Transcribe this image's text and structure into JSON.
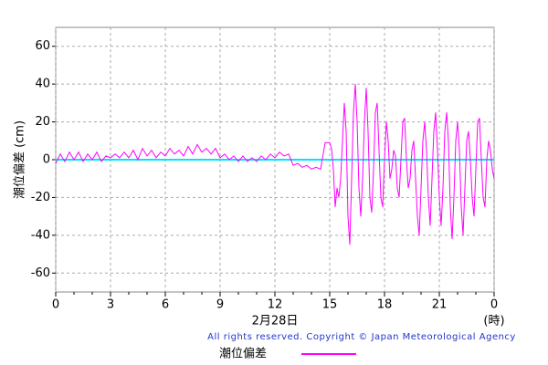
{
  "chart_data": {
    "type": "line",
    "ylabel": "潮位偏差 (cm)",
    "xlabel": "2月28日",
    "xunit": "(時)",
    "copyright": "All rights reserved. Copyright © Japan Meteorological Agency",
    "xlim": [
      0,
      24
    ],
    "ylim": [
      -70,
      70
    ],
    "xticks": [
      0,
      3,
      6,
      9,
      12,
      15,
      18,
      21,
      {
        "value": 24,
        "label": "0"
      }
    ],
    "xminorticks": [
      1,
      2,
      4,
      5,
      7,
      8,
      10,
      11,
      13,
      14,
      16,
      17,
      19,
      20,
      22,
      23
    ],
    "yticks": [
      -60,
      -40,
      -20,
      0,
      20,
      40,
      60
    ],
    "grid": true,
    "reference_line": {
      "value": 0,
      "color": "#00e5ff"
    },
    "x": [
      0,
      0.25,
      0.5,
      0.75,
      1,
      1.25,
      1.5,
      1.75,
      2,
      2.25,
      2.5,
      2.75,
      3,
      3.25,
      3.5,
      3.75,
      4,
      4.25,
      4.5,
      4.75,
      5,
      5.25,
      5.5,
      5.75,
      6,
      6.25,
      6.5,
      6.75,
      7,
      7.25,
      7.5,
      7.75,
      8,
      8.25,
      8.5,
      8.75,
      9,
      9.25,
      9.5,
      9.75,
      10,
      10.25,
      10.5,
      10.75,
      11,
      11.25,
      11.5,
      11.75,
      12,
      12.25,
      12.5,
      12.75,
      13,
      13.25,
      13.5,
      13.75,
      14,
      14.25,
      14.5,
      14.75,
      15,
      15.1,
      15.2,
      15.3,
      15.4,
      15.5,
      15.6,
      15.7,
      15.8,
      15.9,
      16,
      16.1,
      16.2,
      16.3,
      16.4,
      16.5,
      16.6,
      16.7,
      16.8,
      16.9,
      17,
      17.1,
      17.2,
      17.3,
      17.4,
      17.5,
      17.6,
      17.7,
      17.8,
      17.9,
      18,
      18.1,
      18.2,
      18.3,
      18.4,
      18.5,
      18.6,
      18.7,
      18.8,
      18.9,
      19,
      19.1,
      19.2,
      19.3,
      19.4,
      19.5,
      19.6,
      19.7,
      19.8,
      19.9,
      20,
      20.1,
      20.2,
      20.3,
      20.4,
      20.5,
      20.6,
      20.7,
      20.8,
      20.9,
      21,
      21.1,
      21.2,
      21.3,
      21.4,
      21.5,
      21.6,
      21.7,
      21.8,
      21.9,
      22,
      22.1,
      22.2,
      22.3,
      22.4,
      22.5,
      22.6,
      22.7,
      22.8,
      22.9,
      23,
      23.1,
      23.2,
      23.3,
      23.4,
      23.5,
      23.6,
      23.7,
      23.8,
      23.9,
      24
    ],
    "series": [
      {
        "name": "潮位偏差",
        "color": "#ff00ff",
        "values": [
          -2,
          3,
          -1,
          4,
          0,
          4,
          -1,
          3,
          0,
          4,
          -1,
          2,
          1,
          3,
          1,
          4,
          1,
          5,
          0,
          6,
          2,
          5,
          1,
          4,
          2,
          6,
          3,
          5,
          2,
          7,
          3,
          8,
          4,
          6,
          3,
          6,
          1,
          3,
          0,
          2,
          -1,
          2,
          -1,
          1,
          -1,
          2,
          0,
          3,
          1,
          4,
          2,
          3,
          -3,
          -2,
          -4,
          -3,
          -5,
          -4,
          -5,
          9,
          9,
          6,
          -5,
          -25,
          -15,
          -20,
          -10,
          10,
          30,
          15,
          -30,
          -45,
          -10,
          25,
          40,
          20,
          -15,
          -30,
          -10,
          20,
          38,
          15,
          -20,
          -28,
          -5,
          25,
          30,
          5,
          -20,
          -25,
          0,
          20,
          10,
          -10,
          -5,
          5,
          2,
          -15,
          -20,
          0,
          20,
          22,
          0,
          -15,
          -10,
          5,
          10,
          -10,
          -30,
          -40,
          -15,
          10,
          20,
          5,
          -20,
          -35,
          -10,
          15,
          25,
          5,
          -20,
          -35,
          -15,
          15,
          25,
          10,
          -25,
          -42,
          -20,
          10,
          20,
          5,
          -25,
          -40,
          -15,
          10,
          15,
          0,
          -20,
          -30,
          -5,
          20,
          22,
          0,
          -20,
          -25,
          0,
          10,
          5,
          -5,
          -10
        ]
      }
    ]
  }
}
